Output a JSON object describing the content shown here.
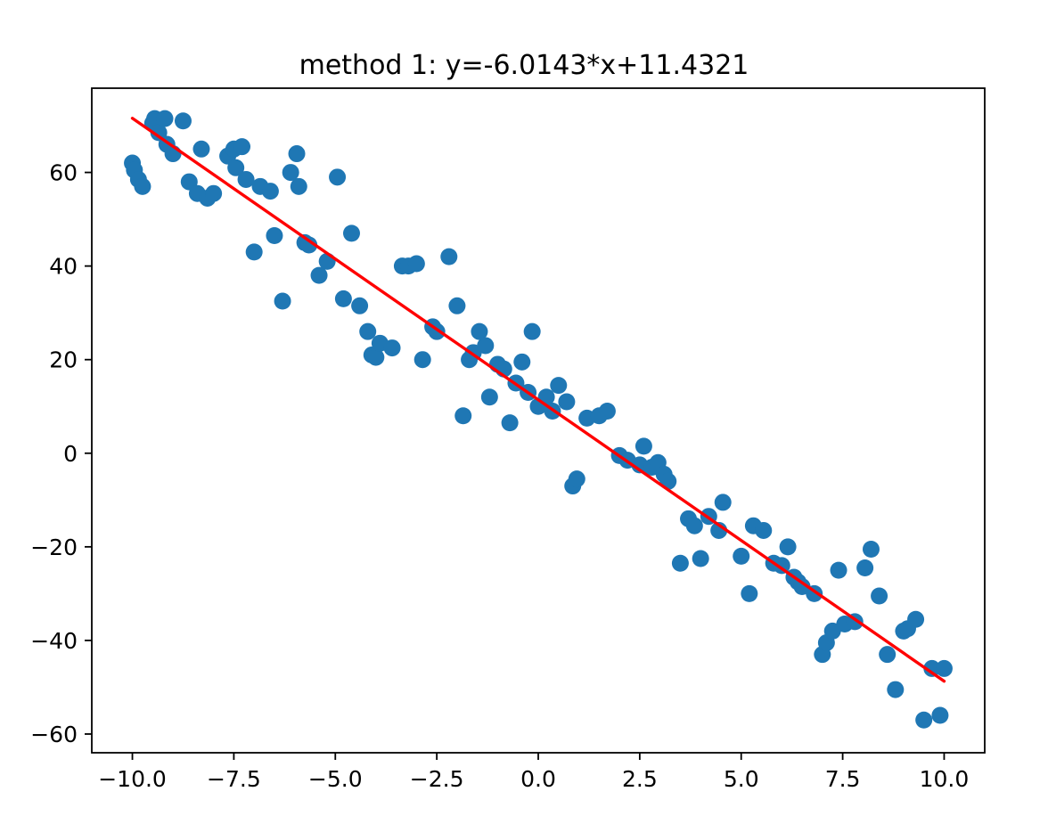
{
  "figure": {
    "background": "#ffffff"
  },
  "chart_data": {
    "type": "scatter",
    "title": "method 1: y=-6.0143*x+11.4321",
    "xlabel": "",
    "ylabel": "",
    "grid": false,
    "legend": "none",
    "xlim": [
      -11,
      11
    ],
    "ylim": [
      -64,
      78
    ],
    "x_ticks": [
      -10.0,
      -7.5,
      -5.0,
      -2.5,
      0.0,
      2.5,
      5.0,
      7.5,
      10.0
    ],
    "x_tick_labels": [
      "−10.0",
      "−7.5",
      "−5.0",
      "−2.5",
      "0.0",
      "2.5",
      "5.0",
      "7.5",
      "10.0"
    ],
    "y_ticks": [
      -60,
      -40,
      -20,
      0,
      20,
      40,
      60
    ],
    "y_tick_labels": [
      "−60",
      "−40",
      "−20",
      "0",
      "20",
      "40",
      "60"
    ],
    "series": [
      {
        "name": "data points",
        "type": "scatter",
        "color": "#1f77b4",
        "marker_radius": 9.5,
        "points": [
          [
            -10.0,
            62
          ],
          [
            -9.95,
            60.5
          ],
          [
            -9.85,
            58.5
          ],
          [
            -9.75,
            57
          ],
          [
            -9.5,
            70.5
          ],
          [
            -9.45,
            71.5
          ],
          [
            -9.35,
            68.5
          ],
          [
            -9.2,
            71.5
          ],
          [
            -9.15,
            66
          ],
          [
            -9.0,
            64
          ],
          [
            -8.75,
            71
          ],
          [
            -8.6,
            58
          ],
          [
            -8.4,
            55.5
          ],
          [
            -8.3,
            65
          ],
          [
            -8.15,
            54.5
          ],
          [
            -8.0,
            55.5
          ],
          [
            -7.65,
            63.5
          ],
          [
            -7.5,
            65
          ],
          [
            -7.45,
            61
          ],
          [
            -7.3,
            65.5
          ],
          [
            -7.2,
            58.5
          ],
          [
            -7.0,
            43
          ],
          [
            -6.85,
            57
          ],
          [
            -6.6,
            56
          ],
          [
            -6.5,
            46.5
          ],
          [
            -6.3,
            32.5
          ],
          [
            -6.1,
            60
          ],
          [
            -5.95,
            64
          ],
          [
            -5.9,
            57
          ],
          [
            -5.75,
            45
          ],
          [
            -5.65,
            44.5
          ],
          [
            -5.4,
            38
          ],
          [
            -5.2,
            41
          ],
          [
            -4.95,
            59
          ],
          [
            -4.8,
            33
          ],
          [
            -4.6,
            47
          ],
          [
            -4.4,
            31.5
          ],
          [
            -4.2,
            26
          ],
          [
            -4.1,
            21
          ],
          [
            -4.0,
            20.5
          ],
          [
            -3.9,
            23.5
          ],
          [
            -3.6,
            22.5
          ],
          [
            -3.35,
            40
          ],
          [
            -3.2,
            40
          ],
          [
            -3.0,
            40.5
          ],
          [
            -2.85,
            20
          ],
          [
            -2.6,
            27
          ],
          [
            -2.5,
            26
          ],
          [
            -2.2,
            42
          ],
          [
            -2.0,
            31.5
          ],
          [
            -1.85,
            8
          ],
          [
            -1.7,
            20
          ],
          [
            -1.6,
            21.5
          ],
          [
            -1.45,
            26
          ],
          [
            -1.3,
            23
          ],
          [
            -1.2,
            12
          ],
          [
            -1.0,
            19
          ],
          [
            -0.85,
            18
          ],
          [
            -0.7,
            6.5
          ],
          [
            -0.55,
            15
          ],
          [
            -0.4,
            19.5
          ],
          [
            -0.25,
            13
          ],
          [
            -0.15,
            26
          ],
          [
            0.0,
            10
          ],
          [
            0.2,
            12
          ],
          [
            0.35,
            9
          ],
          [
            0.5,
            14.5
          ],
          [
            0.7,
            11
          ],
          [
            0.85,
            -7
          ],
          [
            0.95,
            -5.5
          ],
          [
            1.2,
            7.5
          ],
          [
            1.5,
            8
          ],
          [
            1.7,
            9
          ],
          [
            2.0,
            -0.5
          ],
          [
            2.2,
            -1.5
          ],
          [
            2.5,
            -2.5
          ],
          [
            2.6,
            1.5
          ],
          [
            2.8,
            -3
          ],
          [
            2.95,
            -2
          ],
          [
            3.1,
            -4.5
          ],
          [
            3.2,
            -6
          ],
          [
            3.5,
            -23.5
          ],
          [
            3.7,
            -14
          ],
          [
            3.85,
            -15.5
          ],
          [
            4.0,
            -22.5
          ],
          [
            4.2,
            -13.5
          ],
          [
            4.45,
            -16.5
          ],
          [
            4.55,
            -10.5
          ],
          [
            5.0,
            -22
          ],
          [
            5.2,
            -30
          ],
          [
            5.3,
            -15.5
          ],
          [
            5.55,
            -16.5
          ],
          [
            5.8,
            -23.5
          ],
          [
            6.0,
            -24
          ],
          [
            6.15,
            -20
          ],
          [
            6.3,
            -26.5
          ],
          [
            6.4,
            -27.5
          ],
          [
            6.5,
            -28.5
          ],
          [
            6.8,
            -30
          ],
          [
            7.0,
            -43
          ],
          [
            7.1,
            -40.5
          ],
          [
            7.25,
            -38
          ],
          [
            7.4,
            -25
          ],
          [
            7.55,
            -36.5
          ],
          [
            7.8,
            -36
          ],
          [
            8.05,
            -24.5
          ],
          [
            8.2,
            -20.5
          ],
          [
            8.4,
            -30.5
          ],
          [
            8.6,
            -43
          ],
          [
            8.8,
            -50.5
          ],
          [
            9.0,
            -38
          ],
          [
            9.1,
            -37.5
          ],
          [
            9.3,
            -35.5
          ],
          [
            9.5,
            -57
          ],
          [
            9.7,
            -46
          ],
          [
            9.9,
            -56
          ],
          [
            10.0,
            -46
          ]
        ]
      },
      {
        "name": "fitted line",
        "type": "line",
        "color": "#ff0000",
        "slope": -6.0143,
        "intercept": 11.4321,
        "x_range": [
          -10.0,
          10.0
        ],
        "line_width": 3.4
      }
    ]
  }
}
